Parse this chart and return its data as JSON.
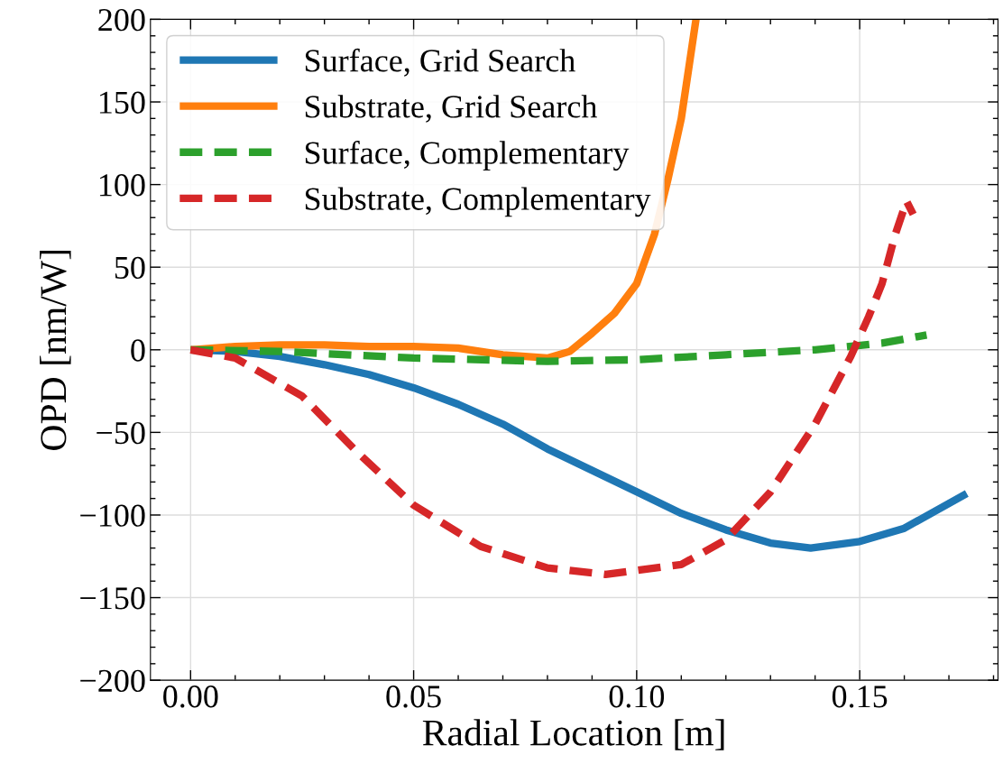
{
  "chart_data": {
    "type": "line",
    "xlabel": "Radial Location [m]",
    "ylabel": "OPD [nm/W]",
    "xlim": [
      -0.009,
      0.181
    ],
    "ylim": [
      -200,
      200
    ],
    "xticks": [
      {
        "value": 0,
        "label": "0.00"
      },
      {
        "value": 0.05,
        "label": "0.05"
      },
      {
        "value": 0.1,
        "label": "0.10"
      },
      {
        "value": 0.15,
        "label": "0.15"
      }
    ],
    "yticks": [
      {
        "value": -200,
        "label": "−200"
      },
      {
        "value": -150,
        "label": "−150"
      },
      {
        "value": -100,
        "label": "−100"
      },
      {
        "value": -50,
        "label": "−50"
      },
      0,
      50,
      100,
      150,
      200
    ],
    "grid": true,
    "legend": "top left",
    "series": [
      {
        "name": "Surface, Grid Search",
        "color": "#1f77b4",
        "line_style": "solid",
        "x": [
          0,
          0.01,
          0.02,
          0.03,
          0.04,
          0.05,
          0.06,
          0.07,
          0.08,
          0.09,
          0.1,
          0.11,
          0.12,
          0.13,
          0.139,
          0.15,
          0.16,
          0.174
        ],
        "values": [
          0,
          -1,
          -4,
          -9,
          -15,
          -23,
          -33,
          -45,
          -60,
          -73,
          -86,
          -99,
          -109,
          -117,
          -120,
          -116,
          -108,
          -87
        ]
      },
      {
        "name": "Substrate, Grid Search",
        "color": "#ff7f0e",
        "line_style": "solid",
        "x": [
          0,
          0.01,
          0.02,
          0.03,
          0.04,
          0.05,
          0.06,
          0.07,
          0.08,
          0.085,
          0.09,
          0.095,
          0.1,
          0.104,
          0.107,
          0.11,
          0.1133
        ],
        "values": [
          0,
          2,
          3,
          3,
          2,
          2,
          1,
          -3,
          -5,
          -1,
          10,
          22,
          40,
          70,
          103,
          140,
          200
        ]
      },
      {
        "name": "Surface, Complementary",
        "color": "#2ca02c",
        "line_style": "dashed",
        "x": [
          0,
          0.02,
          0.05,
          0.08,
          0.1,
          0.12,
          0.14,
          0.155,
          0.165
        ],
        "values": [
          0,
          -1,
          -5,
          -7,
          -6,
          -3,
          0,
          4,
          9
        ]
      },
      {
        "name": "Substrate, Complementary",
        "color": "#d62728",
        "line_style": "dashed",
        "x": [
          0,
          0.01,
          0.025,
          0.037,
          0.05,
          0.065,
          0.08,
          0.093,
          0.11,
          0.12,
          0.13,
          0.14,
          0.148,
          0.152,
          0.155,
          0.158,
          0.1605,
          0.162
        ],
        "values": [
          0,
          -5,
          -28,
          -61,
          -94,
          -119,
          -132,
          -136,
          -130,
          -115,
          -86,
          -45,
          -4,
          20,
          40,
          70,
          90,
          82
        ]
      }
    ]
  }
}
